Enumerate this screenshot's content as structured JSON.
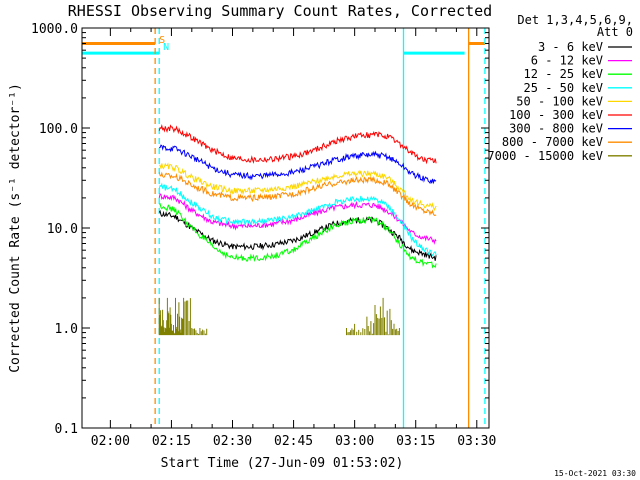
{
  "chart_data": {
    "type": "line",
    "title": "RHESSI Observing Summary Count Rates, Corrected",
    "xlabel": "Start Time (27-Jun-09 01:53:02)",
    "ylabel": "Corrected Count Rate (s⁻¹ detector⁻¹)",
    "yscale": "log",
    "xlim": [
      "01:53:02",
      "03:33:00"
    ],
    "ylim": [
      0.1,
      1000.0
    ],
    "x_ticks": [
      "02:00",
      "02:15",
      "02:30",
      "02:45",
      "03:00",
      "03:15",
      "03:30"
    ],
    "y_ticks": [
      "0.1",
      "1.0",
      "10.0",
      "100.0",
      "1000.0"
    ],
    "legend_header": [
      "Det 1,3,4,5,6,9,",
      "Att 0"
    ],
    "legend_position": "outside-right",
    "grid": false,
    "series": [
      {
        "name": "3 - 6 keV",
        "color": "#000000",
        "x": [
          "02:12",
          "02:16",
          "02:20",
          "02:25",
          "02:30",
          "02:35",
          "02:40",
          "02:45",
          "02:50",
          "02:55",
          "03:00",
          "03:05",
          "03:08",
          "03:11",
          "03:14",
          "03:17",
          "03:20"
        ],
        "values": [
          14,
          13,
          10,
          7.5,
          6.5,
          6.5,
          6.8,
          7.5,
          9,
          11,
          12,
          12,
          10,
          8,
          6,
          5.5,
          5
        ]
      },
      {
        "name": "6 - 12 keV",
        "color": "#ff00ff",
        "x": [
          "02:12",
          "02:16",
          "02:20",
          "02:25",
          "02:30",
          "02:35",
          "02:40",
          "02:45",
          "02:50",
          "02:55",
          "03:00",
          "03:05",
          "03:08",
          "03:11",
          "03:14",
          "03:17",
          "03:20"
        ],
        "values": [
          21,
          20,
          15,
          11.5,
          10.5,
          10.5,
          11,
          12,
          14,
          16,
          17,
          17,
          15,
          12,
          9,
          8,
          7.5
        ]
      },
      {
        "name": "12 - 25 keV",
        "color": "#00ff00",
        "x": [
          "02:12",
          "02:16",
          "02:20",
          "02:25",
          "02:30",
          "02:35",
          "02:40",
          "02:45",
          "02:50",
          "02:55",
          "03:00",
          "03:05",
          "03:08",
          "03:11",
          "03:14",
          "03:17",
          "03:20"
        ],
        "values": [
          17,
          15,
          10,
          6.5,
          5,
          5,
          5.2,
          6,
          8,
          10.5,
          12,
          12,
          10,
          7,
          5,
          4.5,
          4.2
        ]
      },
      {
        "name": "25 - 50 keV",
        "color": "#00ffff",
        "x": [
          "02:12",
          "02:16",
          "02:20",
          "02:25",
          "02:30",
          "02:35",
          "02:40",
          "02:45",
          "02:50",
          "02:55",
          "03:00",
          "03:05",
          "03:08",
          "03:11",
          "03:14",
          "03:17",
          "03:20"
        ],
        "values": [
          26,
          24,
          18,
          13,
          11.5,
          11.5,
          12,
          13,
          15,
          18,
          19.5,
          19.5,
          17,
          12,
          8,
          6,
          5.5
        ]
      },
      {
        "name": "50 - 100 keV",
        "color": "#ffd700",
        "x": [
          "02:12",
          "02:16",
          "02:20",
          "02:25",
          "02:30",
          "02:35",
          "02:40",
          "02:45",
          "02:50",
          "02:55",
          "03:00",
          "03:05",
          "03:08",
          "03:11",
          "03:14",
          "03:17",
          "03:20"
        ],
        "values": [
          42,
          40,
          32,
          26,
          23.5,
          23.5,
          24.5,
          26,
          29,
          33,
          35,
          35,
          32,
          25,
          19,
          17,
          16
        ]
      },
      {
        "name": "100 - 300 keV",
        "color": "#ff0000",
        "x": [
          "02:12",
          "02:16",
          "02:20",
          "02:25",
          "02:30",
          "02:35",
          "02:40",
          "02:45",
          "02:50",
          "02:55",
          "03:00",
          "03:05",
          "03:08",
          "03:11",
          "03:14",
          "03:17",
          "03:20"
        ],
        "values": [
          100,
          98,
          80,
          60,
          50,
          48,
          49,
          52,
          60,
          73,
          83,
          86,
          82,
          70,
          56,
          48,
          46
        ]
      },
      {
        "name": "300 - 800 keV",
        "color": "#0000ff",
        "x": [
          "02:12",
          "02:16",
          "02:20",
          "02:25",
          "02:30",
          "02:35",
          "02:40",
          "02:45",
          "02:50",
          "02:55",
          "03:00",
          "03:05",
          "03:08",
          "03:11",
          "03:14",
          "03:17",
          "03:20"
        ],
        "values": [
          64,
          62,
          52,
          40,
          34,
          33,
          34,
          36,
          41,
          48,
          53,
          54,
          52,
          44,
          35,
          31,
          29
        ]
      },
      {
        "name": "800 - 7000 keV",
        "color": "#ff8c00",
        "x": [
          "02:12",
          "02:16",
          "02:20",
          "02:25",
          "02:30",
          "02:35",
          "02:40",
          "02:45",
          "02:50",
          "02:55",
          "03:00",
          "03:05",
          "03:08",
          "03:11",
          "03:14",
          "03:17",
          "03:20"
        ],
        "values": [
          34,
          33,
          27,
          22,
          20,
          20,
          20.5,
          22,
          25,
          28,
          30,
          30,
          28,
          22,
          17,
          15,
          14
        ]
      },
      {
        "name": "7000 - 15000 keV",
        "color": "#808000",
        "x": [
          "02:12",
          "02:13",
          "02:14",
          "02:15",
          "02:16",
          "02:17",
          "02:18",
          "02:20",
          "02:22",
          "02:24",
          "02:58",
          "03:00",
          "03:03",
          "03:05",
          "03:07",
          "03:09",
          "03:11"
        ],
        "values": [
          2,
          1.2,
          2,
          1.1,
          2,
          1.3,
          2,
          1,
          1,
          0.85,
          1,
          1.1,
          1.3,
          1.7,
          2,
          1.2,
          1
        ]
      }
    ],
    "markers": [
      {
        "label": "S",
        "color": "#ff8c00",
        "x": "02:11"
      },
      {
        "label": "N",
        "color": "#00ffff",
        "x": "02:11"
      }
    ],
    "bands": [
      {
        "type": "saa",
        "color": "#ff8c00",
        "level": 700,
        "x_ranges": [
          [
            "01:53:02",
            "02:11"
          ],
          [
            "03:28",
            "03:32"
          ]
        ]
      },
      {
        "type": "night",
        "color": "#00ffff",
        "level": 560,
        "x_ranges": [
          [
            "01:53:02",
            "02:12"
          ],
          [
            "03:12",
            "03:27"
          ]
        ]
      }
    ],
    "vertical_lines": [
      {
        "color": "#ff8c00",
        "style": "dashed",
        "x": "02:11"
      },
      {
        "color": "#00ffff",
        "style": "dashed",
        "x": "02:12"
      },
      {
        "color": "#00ffff",
        "style": "solid",
        "x": "03:12"
      },
      {
        "color": "#ff8c00",
        "style": "solid",
        "x": "03:28"
      },
      {
        "color": "#00ffff",
        "style": "dashed",
        "x": "03:32"
      }
    ]
  },
  "footer": {
    "timestamp": "15-Oct-2021 03:30"
  }
}
